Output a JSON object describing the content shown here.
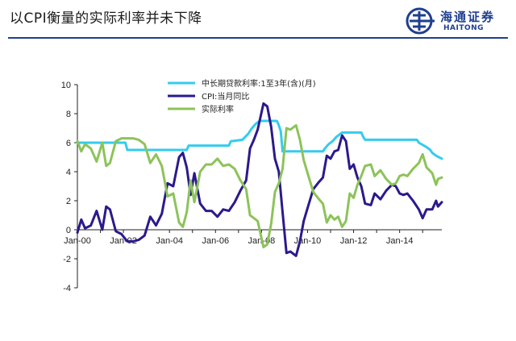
{
  "header": {
    "title": "以CPI衡量的实际利率并未下降",
    "logo_cn": "海通证券",
    "logo_en": "HAITONG",
    "accent": "#1f3f8f"
  },
  "chart_data": {
    "type": "line",
    "title": "",
    "xlabel": "",
    "ylabel": "",
    "ylim": [
      -4,
      10
    ],
    "y_ticks": [
      10,
      8,
      6,
      4,
      2,
      0,
      -2,
      -4
    ],
    "x_range": [
      "2000-01",
      "2015-11"
    ],
    "x_ticks": [
      "Jan-00",
      "Jan-02",
      "Jan-04",
      "Jan-06",
      "Jan-08",
      "Jan-10",
      "Jan-12",
      "Jan-14"
    ],
    "grid": false,
    "legend_position": "top",
    "series": [
      {
        "name": "中长期贷款利率:1至3年(含)(月)",
        "color": "#33ccee",
        "points": [
          [
            "2000-01",
            6.0
          ],
          [
            "2002-02",
            6.0
          ],
          [
            "2002-03",
            5.5
          ],
          [
            "2004-10",
            5.5
          ],
          [
            "2004-11",
            5.8
          ],
          [
            "2006-08",
            5.8
          ],
          [
            "2006-09",
            6.1
          ],
          [
            "2007-03",
            6.2
          ],
          [
            "2007-06",
            6.6
          ],
          [
            "2007-08",
            7.0
          ],
          [
            "2007-10",
            7.3
          ],
          [
            "2007-12",
            7.5
          ],
          [
            "2008-09",
            7.5
          ],
          [
            "2008-10",
            7.2
          ],
          [
            "2008-11",
            6.8
          ],
          [
            "2008-12",
            5.4
          ],
          [
            "2010-09",
            5.4
          ],
          [
            "2010-10",
            5.6
          ],
          [
            "2010-12",
            5.9
          ],
          [
            "2011-02",
            6.1
          ],
          [
            "2011-04",
            6.4
          ],
          [
            "2011-07",
            6.7
          ],
          [
            "2012-05",
            6.7
          ],
          [
            "2012-06",
            6.4
          ],
          [
            "2012-07",
            6.2
          ],
          [
            "2014-10",
            6.2
          ],
          [
            "2014-11",
            6.0
          ],
          [
            "2015-03",
            5.7
          ],
          [
            "2015-05",
            5.5
          ],
          [
            "2015-06",
            5.3
          ],
          [
            "2015-08",
            5.1
          ],
          [
            "2015-11",
            4.9
          ]
        ]
      },
      {
        "name": "CPI:当月同比",
        "color": "#2a1a8c",
        "points": [
          [
            "2000-01",
            -0.2
          ],
          [
            "2000-03",
            0.7
          ],
          [
            "2000-05",
            0.1
          ],
          [
            "2000-08",
            0.3
          ],
          [
            "2000-11",
            1.3
          ],
          [
            "2001-02",
            0.0
          ],
          [
            "2001-04",
            1.6
          ],
          [
            "2001-06",
            1.4
          ],
          [
            "2001-09",
            -0.1
          ],
          [
            "2001-12",
            -0.3
          ],
          [
            "2002-03",
            -0.8
          ],
          [
            "2002-06",
            -0.8
          ],
          [
            "2002-09",
            -0.7
          ],
          [
            "2002-12",
            -0.4
          ],
          [
            "2003-03",
            0.9
          ],
          [
            "2003-06",
            0.3
          ],
          [
            "2003-09",
            1.1
          ],
          [
            "2003-12",
            3.2
          ],
          [
            "2004-03",
            3.0
          ],
          [
            "2004-06",
            5.0
          ],
          [
            "2004-08",
            5.3
          ],
          [
            "2004-10",
            4.3
          ],
          [
            "2004-12",
            2.4
          ],
          [
            "2005-02",
            3.9
          ],
          [
            "2005-05",
            1.8
          ],
          [
            "2005-08",
            1.3
          ],
          [
            "2005-11",
            1.3
          ],
          [
            "2006-02",
            0.9
          ],
          [
            "2006-05",
            1.4
          ],
          [
            "2006-08",
            1.3
          ],
          [
            "2006-11",
            1.9
          ],
          [
            "2007-02",
            2.7
          ],
          [
            "2007-05",
            3.4
          ],
          [
            "2007-07",
            5.6
          ],
          [
            "2007-09",
            6.2
          ],
          [
            "2007-11",
            6.9
          ],
          [
            "2008-02",
            8.7
          ],
          [
            "2008-04",
            8.5
          ],
          [
            "2008-06",
            7.1
          ],
          [
            "2008-08",
            4.9
          ],
          [
            "2008-10",
            4.0
          ],
          [
            "2008-12",
            1.2
          ],
          [
            "2009-02",
            -1.6
          ],
          [
            "2009-04",
            -1.5
          ],
          [
            "2009-07",
            -1.8
          ],
          [
            "2009-09",
            -0.8
          ],
          [
            "2009-11",
            0.6
          ],
          [
            "2010-01",
            1.5
          ],
          [
            "2010-04",
            2.8
          ],
          [
            "2010-07",
            3.3
          ],
          [
            "2010-09",
            3.6
          ],
          [
            "2010-11",
            5.1
          ],
          [
            "2011-01",
            4.9
          ],
          [
            "2011-03",
            5.4
          ],
          [
            "2011-05",
            5.5
          ],
          [
            "2011-07",
            6.5
          ],
          [
            "2011-09",
            6.1
          ],
          [
            "2011-11",
            4.2
          ],
          [
            "2012-01",
            4.5
          ],
          [
            "2012-03",
            3.6
          ],
          [
            "2012-05",
            3.0
          ],
          [
            "2012-07",
            1.8
          ],
          [
            "2012-10",
            1.7
          ],
          [
            "2012-12",
            2.5
          ],
          [
            "2013-03",
            2.1
          ],
          [
            "2013-06",
            2.7
          ],
          [
            "2013-09",
            3.1
          ],
          [
            "2013-11",
            3.0
          ],
          [
            "2014-01",
            2.5
          ],
          [
            "2014-03",
            2.4
          ],
          [
            "2014-05",
            2.5
          ],
          [
            "2014-08",
            2.0
          ],
          [
            "2014-11",
            1.4
          ],
          [
            "2015-01",
            0.8
          ],
          [
            "2015-03",
            1.4
          ],
          [
            "2015-06",
            1.4
          ],
          [
            "2015-08",
            2.0
          ],
          [
            "2015-09",
            1.6
          ],
          [
            "2015-11",
            1.9
          ]
        ]
      },
      {
        "name": "实际利率",
        "color": "#8dc35a",
        "points": [
          [
            "2000-01",
            6.1
          ],
          [
            "2000-03",
            5.4
          ],
          [
            "2000-05",
            5.9
          ],
          [
            "2000-08",
            5.6
          ],
          [
            "2000-11",
            4.7
          ],
          [
            "2001-02",
            6.0
          ],
          [
            "2001-04",
            4.4
          ],
          [
            "2001-06",
            4.6
          ],
          [
            "2001-09",
            6.1
          ],
          [
            "2001-12",
            6.3
          ],
          [
            "2002-03",
            6.3
          ],
          [
            "2002-06",
            6.3
          ],
          [
            "2002-09",
            6.2
          ],
          [
            "2002-12",
            5.9
          ],
          [
            "2003-03",
            4.6
          ],
          [
            "2003-06",
            5.2
          ],
          [
            "2003-09",
            4.4
          ],
          [
            "2003-12",
            2.3
          ],
          [
            "2004-03",
            2.5
          ],
          [
            "2004-06",
            0.5
          ],
          [
            "2004-08",
            0.2
          ],
          [
            "2004-10",
            1.2
          ],
          [
            "2004-12",
            3.4
          ],
          [
            "2005-02",
            1.9
          ],
          [
            "2005-05",
            4.0
          ],
          [
            "2005-08",
            4.5
          ],
          [
            "2005-11",
            4.5
          ],
          [
            "2006-02",
            4.9
          ],
          [
            "2006-05",
            4.4
          ],
          [
            "2006-08",
            4.5
          ],
          [
            "2006-11",
            4.2
          ],
          [
            "2007-02",
            3.4
          ],
          [
            "2007-05",
            2.8
          ],
          [
            "2007-07",
            1.0
          ],
          [
            "2007-09",
            0.8
          ],
          [
            "2007-11",
            0.6
          ],
          [
            "2008-02",
            -1.2
          ],
          [
            "2008-04",
            -1.0
          ],
          [
            "2008-06",
            0.4
          ],
          [
            "2008-08",
            2.6
          ],
          [
            "2008-10",
            3.2
          ],
          [
            "2008-12",
            4.2
          ],
          [
            "2009-02",
            7.0
          ],
          [
            "2009-04",
            6.9
          ],
          [
            "2009-07",
            7.2
          ],
          [
            "2009-09",
            6.2
          ],
          [
            "2009-11",
            4.8
          ],
          [
            "2010-01",
            3.9
          ],
          [
            "2010-04",
            2.6
          ],
          [
            "2010-07",
            2.1
          ],
          [
            "2010-09",
            1.8
          ],
          [
            "2010-11",
            0.5
          ],
          [
            "2011-01",
            1.0
          ],
          [
            "2011-03",
            0.7
          ],
          [
            "2011-05",
            0.9
          ],
          [
            "2011-07",
            0.2
          ],
          [
            "2011-09",
            0.6
          ],
          [
            "2011-11",
            2.5
          ],
          [
            "2012-01",
            2.2
          ],
          [
            "2012-03",
            3.1
          ],
          [
            "2012-05",
            3.7
          ],
          [
            "2012-07",
            4.4
          ],
          [
            "2012-10",
            4.5
          ],
          [
            "2012-12",
            3.7
          ],
          [
            "2013-03",
            4.1
          ],
          [
            "2013-06",
            3.5
          ],
          [
            "2013-09",
            3.1
          ],
          [
            "2013-11",
            3.2
          ],
          [
            "2014-01",
            3.7
          ],
          [
            "2014-03",
            3.8
          ],
          [
            "2014-05",
            3.7
          ],
          [
            "2014-08",
            4.2
          ],
          [
            "2014-11",
            4.6
          ],
          [
            "2015-01",
            5.2
          ],
          [
            "2015-03",
            4.3
          ],
          [
            "2015-06",
            3.9
          ],
          [
            "2015-08",
            3.1
          ],
          [
            "2015-09",
            3.5
          ],
          [
            "2015-11",
            3.6
          ]
        ]
      }
    ]
  }
}
